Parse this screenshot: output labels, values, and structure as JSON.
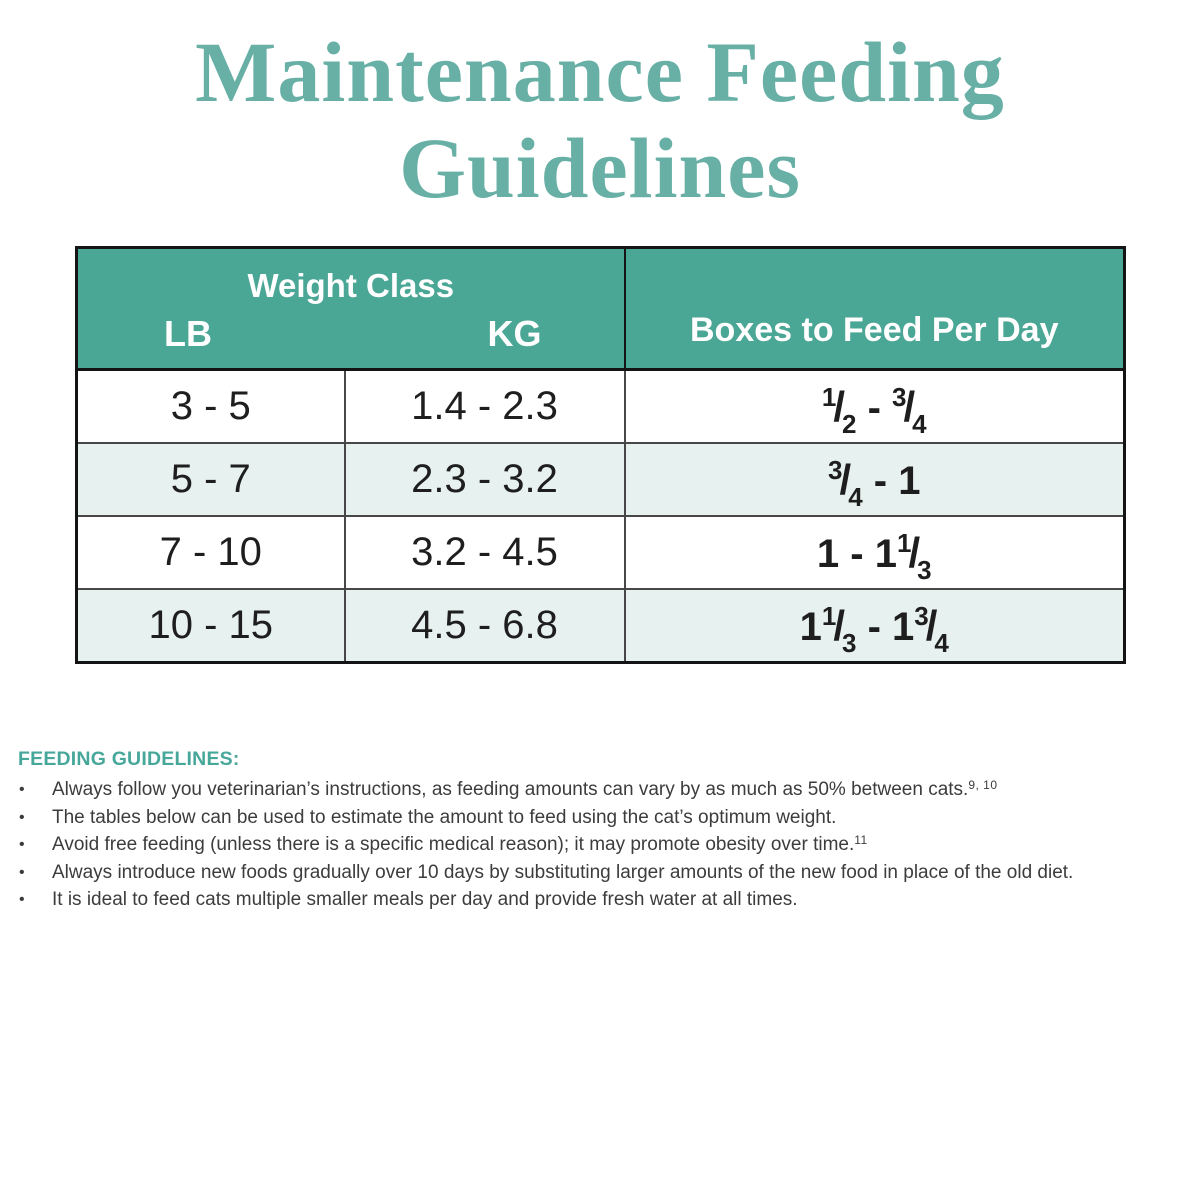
{
  "title": {
    "line1": "Maintenance Feeding",
    "line2": "Guidelines"
  },
  "table": {
    "header": {
      "weight_class": "Weight Class",
      "lb": "LB",
      "kg": "KG",
      "boxes_per_day": "Boxes to Feed Per Day"
    },
    "rows": [
      {
        "lb": "3 - 5",
        "kg": "1.4 - 2.3",
        "boxes": [
          {
            "n": "1",
            "d": "2"
          },
          {
            "t": " - "
          },
          {
            "n": "3",
            "d": "4"
          }
        ]
      },
      {
        "lb": "5 - 7",
        "kg": "2.3 - 3.2",
        "boxes": [
          {
            "n": "3",
            "d": "4"
          },
          {
            "t": " - 1"
          }
        ]
      },
      {
        "lb": "7 - 10",
        "kg": "3.2 - 4.5",
        "boxes": [
          {
            "t": "1 - 1"
          },
          {
            "n": "1",
            "d": "3"
          }
        ]
      },
      {
        "lb": "10 - 15",
        "kg": "4.5 - 6.8",
        "boxes": [
          {
            "t": "1"
          },
          {
            "n": "1",
            "d": "3"
          },
          {
            "t": " - 1"
          },
          {
            "n": "3",
            "d": "4"
          }
        ]
      }
    ]
  },
  "guidelines": {
    "heading": "FEEDING GUIDELINES:",
    "bullets": [
      {
        "text": "Always follow you veterinarian’s instructions, as feeding amounts can vary by as much as 50% between cats.",
        "sup": "9, 10"
      },
      {
        "text": "The tables below can be used to estimate the amount to feed using the cat’s optimum weight.",
        "sup": ""
      },
      {
        "text": "Avoid free feeding (unless there is a specific medical reason); it may promote obesity over time.",
        "sup": "11"
      },
      {
        "text": "Always introduce new foods gradually over 10 days by substituting larger amounts of the new food in place of the old diet.",
        "sup": ""
      },
      {
        "text": "It is ideal to feed cats multiple smaller meals per day and provide fresh water at all times.",
        "sup": ""
      }
    ]
  },
  "colors": {
    "title_teal": "#68b0a6",
    "table_header_teal": "#4aa695",
    "guidelines_heading_teal": "#47a79a",
    "alt_row_mint": "#e7f1ef",
    "body_text": "#3c3c3c",
    "table_border_dark": "#141414"
  }
}
